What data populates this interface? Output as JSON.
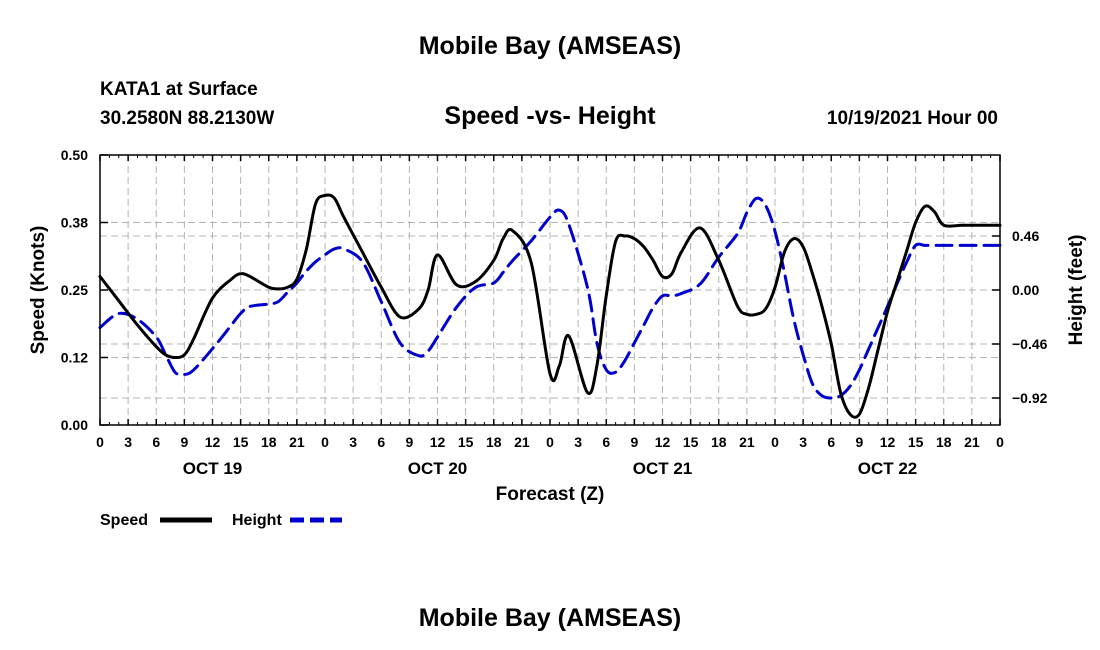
{
  "header": {
    "title": "Mobile Bay (AMSEAS)",
    "station": "KATA1 at Surface",
    "coords": "30.2580N  88.2130W",
    "datetime": "10/19/2021 Hour 00",
    "footer_title": "Mobile Bay (AMSEAS)"
  },
  "chart_data": {
    "type": "line",
    "title": "Speed -vs- Height",
    "xlabel": "Forecast (Z)",
    "ylabel_left": "Speed (Knots)",
    "ylabel_right": "Height (feet)",
    "x_range": [
      0,
      96
    ],
    "x_tick_labels": [
      "0",
      "3",
      "6",
      "9",
      "12",
      "15",
      "18",
      "21",
      "0",
      "3",
      "6",
      "9",
      "12",
      "15",
      "18",
      "21",
      "0",
      "3",
      "6",
      "9",
      "12",
      "15",
      "18",
      "21",
      "0",
      "3",
      "6",
      "9",
      "12",
      "15",
      "18",
      "21",
      "0"
    ],
    "day_labels": [
      {
        "label": "OCT 19",
        "hour": 12
      },
      {
        "label": "OCT 20",
        "hour": 36
      },
      {
        "label": "OCT 21",
        "hour": 60
      },
      {
        "label": "OCT 22",
        "hour": 84
      }
    ],
    "y_left": {
      "range": [
        0,
        0.5
      ],
      "ticks": [
        0,
        0.125,
        0.25,
        0.375,
        0.5
      ],
      "tick_labels": [
        "0.00",
        "0.12",
        "0.25",
        "0.38",
        "0.50"
      ]
    },
    "y_right": {
      "range": [
        -1.15,
        1.15
      ],
      "ticks": [
        -0.92,
        -0.46,
        0.0,
        0.46
      ],
      "tick_labels": [
        "−0.92",
        "−0.46",
        "0.00",
        "0.46"
      ]
    },
    "grid": true,
    "legend_position": "bottom-left",
    "series": [
      {
        "name": "Speed",
        "axis": "left",
        "color": "#000000",
        "dashed": false,
        "x": [
          0,
          2,
          4,
          6,
          7,
          8,
          9,
          10,
          12,
          14,
          15,
          16,
          18,
          19,
          20,
          21,
          22,
          23,
          24,
          25,
          26,
          28,
          30,
          32,
          34,
          35,
          36,
          38,
          40,
          42,
          43,
          44,
          46,
          48,
          49,
          50,
          52,
          53,
          54,
          55,
          56,
          57,
          58,
          59,
          60,
          61,
          62,
          64,
          66,
          68,
          69,
          70,
          71,
          72,
          73,
          74,
          75,
          76,
          77,
          78,
          79,
          80,
          81,
          82,
          83,
          84,
          85,
          86,
          87,
          88,
          89,
          90,
          92,
          94,
          95,
          96
        ],
        "y": [
          0.275,
          0.23,
          0.185,
          0.145,
          0.13,
          0.125,
          0.13,
          0.16,
          0.235,
          0.27,
          0.28,
          0.275,
          0.255,
          0.252,
          0.255,
          0.27,
          0.325,
          0.41,
          0.425,
          0.42,
          0.385,
          0.32,
          0.255,
          0.2,
          0.215,
          0.25,
          0.315,
          0.26,
          0.265,
          0.305,
          0.345,
          0.36,
          0.3,
          0.095,
          0.11,
          0.165,
          0.06,
          0.11,
          0.24,
          0.34,
          0.35,
          0.345,
          0.33,
          0.305,
          0.275,
          0.28,
          0.32,
          0.365,
          0.305,
          0.22,
          0.205,
          0.205,
          0.215,
          0.255,
          0.32,
          0.345,
          0.33,
          0.28,
          0.22,
          0.15,
          0.06,
          0.02,
          0.02,
          0.07,
          0.14,
          0.21,
          0.265,
          0.32,
          0.375,
          0.405,
          0.395,
          0.37,
          0.37,
          0.37,
          0.37,
          0.37
        ]
      },
      {
        "name": "Height",
        "axis": "right",
        "color": "#0000cc",
        "dashed": true,
        "x": [
          0,
          2,
          4,
          6,
          7,
          8,
          9,
          10,
          12,
          14,
          15,
          16,
          18,
          19,
          20,
          21,
          22,
          23,
          24,
          25,
          26,
          28,
          30,
          32,
          34,
          35,
          36,
          38,
          40,
          42,
          43,
          44,
          46,
          48,
          49,
          50,
          52,
          53,
          54,
          55,
          56,
          57,
          58,
          59,
          60,
          61,
          62,
          64,
          66,
          68,
          69,
          70,
          71,
          72,
          73,
          74,
          75,
          76,
          77,
          78,
          79,
          80,
          81,
          82,
          83,
          84,
          85,
          86,
          87,
          88,
          89,
          90,
          92,
          94,
          95,
          96
        ],
        "y": [
          -0.32,
          -0.2,
          -0.25,
          -0.4,
          -0.55,
          -0.7,
          -0.72,
          -0.68,
          -0.5,
          -0.3,
          -0.2,
          -0.14,
          -0.12,
          -0.1,
          -0.02,
          0.06,
          0.16,
          0.24,
          0.3,
          0.35,
          0.35,
          0.24,
          -0.1,
          -0.45,
          -0.56,
          -0.52,
          -0.4,
          -0.15,
          0.02,
          0.06,
          0.15,
          0.25,
          0.42,
          0.62,
          0.68,
          0.56,
          0.02,
          -0.45,
          -0.68,
          -0.7,
          -0.6,
          -0.45,
          -0.3,
          -0.15,
          -0.05,
          -0.05,
          -0.03,
          0.05,
          0.28,
          0.48,
          0.66,
          0.78,
          0.72,
          0.5,
          0.15,
          -0.25,
          -0.55,
          -0.8,
          -0.9,
          -0.92,
          -0.9,
          -0.82,
          -0.68,
          -0.5,
          -0.32,
          -0.14,
          0.05,
          0.23,
          0.38,
          0.38,
          0.38,
          0.38,
          0.38,
          0.38,
          0.38,
          0.38
        ]
      }
    ],
    "legend": [
      {
        "label": "Speed",
        "color": "#000000",
        "dashed": false
      },
      {
        "label": "Height",
        "color": "#0000cc",
        "dashed": true
      }
    ]
  }
}
